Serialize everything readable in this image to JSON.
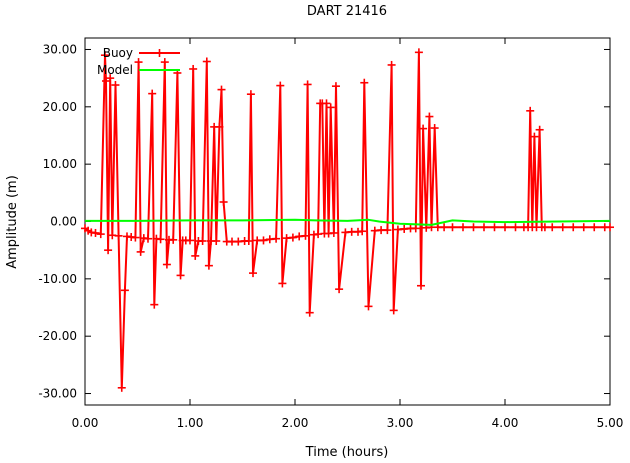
{
  "chart_data": {
    "type": "line",
    "title": "DART 21416",
    "xlabel": "Time (hours)",
    "ylabel": "Amplitude (m)",
    "xlim": [
      0,
      5
    ],
    "ylim": [
      -32,
      32
    ],
    "x_ticks": [
      "0.00",
      "1.00",
      "2.00",
      "3.00",
      "4.00",
      "5.00"
    ],
    "x_tick_values": [
      0,
      1,
      2,
      3,
      4,
      5
    ],
    "y_ticks": [
      "30.00",
      "20.00",
      "10.00",
      "0.00",
      "-10.00",
      "-20.00",
      "-30.00"
    ],
    "y_tick_values": [
      30,
      20,
      10,
      0,
      -10,
      -20,
      -30
    ],
    "grid": false,
    "legend_position": "top-left",
    "series": [
      {
        "name": "Buoy",
        "color": "#ff0000",
        "marker": "plus",
        "x": [
          0,
          0.03,
          0.06,
          0.1,
          0.15,
          0.19,
          0.2,
          0.22,
          0.24,
          0.26,
          0.29,
          0.32,
          0.35,
          0.38,
          0.4,
          0.44,
          0.48,
          0.51,
          0.53,
          0.56,
          0.6,
          0.64,
          0.66,
          0.68,
          0.72,
          0.76,
          0.78,
          0.8,
          0.84,
          0.88,
          0.91,
          0.93,
          0.96,
          1.0,
          1.03,
          1.05,
          1.08,
          1.12,
          1.16,
          1.18,
          1.2,
          1.23,
          1.25,
          1.28,
          1.3,
          1.32,
          1.35,
          1.4,
          1.46,
          1.52,
          1.56,
          1.58,
          1.6,
          1.64,
          1.7,
          1.76,
          1.82,
          1.86,
          1.88,
          1.92,
          1.98,
          2.04,
          2.1,
          2.12,
          2.14,
          2.18,
          2.22,
          2.24,
          2.26,
          2.28,
          2.3,
          2.32,
          2.34,
          2.37,
          2.39,
          2.42,
          2.48,
          2.54,
          2.6,
          2.64,
          2.66,
          2.7,
          2.76,
          2.82,
          2.88,
          2.92,
          2.94,
          2.98,
          3.04,
          3.1,
          3.15,
          3.18,
          3.2,
          3.22,
          3.25,
          3.28,
          3.3,
          3.33,
          3.36,
          3.42,
          3.5,
          3.6,
          3.7,
          3.8,
          3.9,
          4.0,
          4.1,
          4.18,
          4.22,
          4.24,
          4.26,
          4.28,
          4.3,
          4.33,
          4.35,
          4.38,
          4.45,
          4.55,
          4.65,
          4.75,
          4.85,
          4.95,
          5.0
        ],
        "y": [
          -1.2,
          -1.6,
          -1.9,
          -2.0,
          -2.2,
          29.0,
          24.5,
          -5.0,
          25.0,
          -2.4,
          23.8,
          -2.5,
          -29.0,
          -12.0,
          -2.6,
          -2.7,
          -2.8,
          27.8,
          -5.3,
          -2.9,
          -3.0,
          22.3,
          -14.5,
          -3.0,
          -3.1,
          27.8,
          -7.5,
          -3.2,
          -3.2,
          25.9,
          -9.4,
          -3.3,
          -3.3,
          -3.3,
          26.6,
          -6.0,
          -3.4,
          -3.4,
          27.9,
          -7.7,
          -3.4,
          16.5,
          -3.4,
          16.5,
          23.0,
          3.4,
          -3.5,
          -3.5,
          -3.5,
          -3.4,
          -3.4,
          22.2,
          -9.0,
          -3.3,
          -3.3,
          -3.1,
          -3.0,
          23.7,
          -10.8,
          -2.9,
          -2.8,
          -2.6,
          -2.5,
          23.9,
          -15.9,
          -2.3,
          -2.2,
          20.6,
          20.6,
          -2.1,
          20.6,
          -2.1,
          19.9,
          -2.0,
          23.6,
          -11.8,
          -1.9,
          -1.8,
          -1.8,
          -1.7,
          24.2,
          -14.8,
          -1.6,
          -1.5,
          -1.5,
          27.3,
          -15.5,
          -1.4,
          -1.3,
          -1.2,
          -1.2,
          29.5,
          -11.2,
          16.2,
          -1.1,
          18.3,
          -1.0,
          16.3,
          -1.0,
          -1.0,
          -1.0,
          -1.0,
          -1.0,
          -1.0,
          -1.0,
          -1.0,
          -1.0,
          -1.0,
          -1.0,
          19.3,
          -1.0,
          14.8,
          -1.0,
          16.0,
          -1.0,
          -1.0,
          -1.0,
          -1.0,
          -1.0,
          -1.0,
          -1.0,
          -1.0,
          -1.0
        ]
      },
      {
        "name": "Model",
        "color": "#00ff00",
        "marker": "none",
        "x": [
          0,
          0.5,
          1.0,
          1.5,
          2.0,
          2.2,
          2.5,
          2.7,
          2.8,
          3.0,
          3.3,
          3.5,
          3.7,
          4.0,
          4.5,
          5.0
        ],
        "y": [
          0.1,
          0.1,
          0.2,
          0.2,
          0.3,
          0.2,
          0.1,
          0.3,
          0.0,
          -0.4,
          -0.6,
          0.2,
          0.0,
          -0.1,
          0.0,
          0.1
        ]
      }
    ]
  }
}
